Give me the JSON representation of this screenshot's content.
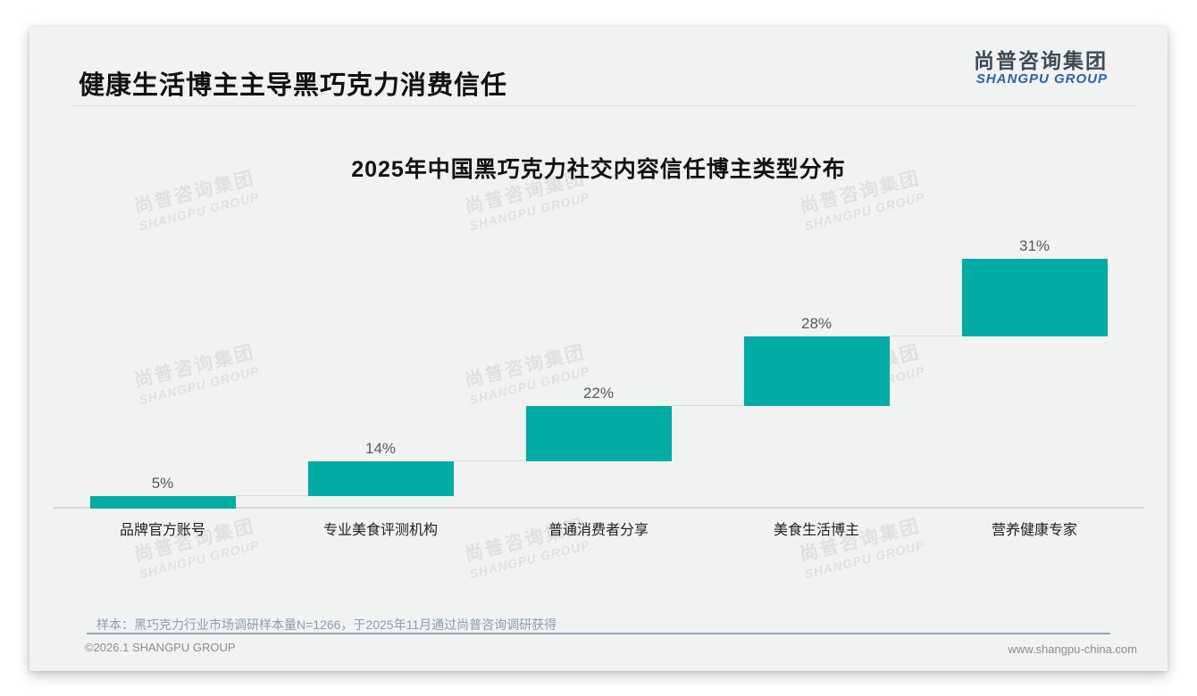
{
  "slide": {
    "title": "健康生活博主主导黑巧克力消费信任",
    "logo": {
      "cn": "尚普咨询集团",
      "en": "SHANGPU GROUP"
    },
    "watermark": {
      "cn": "尚普咨询集团",
      "en": "SHANGPU GROUP"
    },
    "source_note": "样本：黑巧克力行业市场调研样本量N=1266，于2025年11月通过尚普咨询调研获得",
    "footer_left": "©2026.1 SHANGPU GROUP",
    "footer_right": "www.shangpu-china.com"
  },
  "colors": {
    "bar_teal": "#00aca4",
    "logo_blue": "#2e62a6",
    "logo_dark": "#3e4a54",
    "slide_bg": "#f1f2f2",
    "axis_gray": "#d9d9d9",
    "note_blue_gray": "#8d9cb0"
  },
  "chart_data": {
    "type": "bar",
    "subtype": "waterfall",
    "title": "2025年中国黑巧克力社交内容信任博主类型分布",
    "categories": [
      "品牌官方账号",
      "专业美食评测机构",
      "普通消费者分享",
      "美食生活博主",
      "营养健康专家"
    ],
    "values": [
      5,
      14,
      22,
      28,
      31
    ],
    "labels": [
      "5%",
      "14%",
      "22%",
      "28%",
      "31%"
    ],
    "cumulative_start": [
      0,
      5,
      19,
      41,
      69
    ],
    "cumulative_end": [
      5,
      19,
      41,
      69,
      100
    ],
    "unit": "%",
    "ylim": [
      0,
      100
    ],
    "xlabel": "",
    "ylabel": "",
    "grid": false,
    "legend": false,
    "bar_color": "#00aca4",
    "connector_color": "#d8d8d8"
  }
}
